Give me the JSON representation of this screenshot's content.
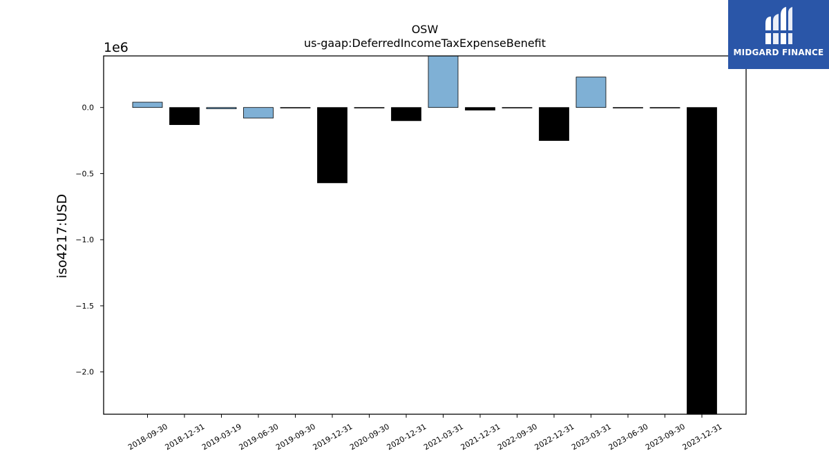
{
  "chart_data": {
    "type": "bar",
    "title": "OSW",
    "subtitle": "us-gaap:DeferredIncomeTaxExpenseBenefit",
    "xlabel": "",
    "ylabel": "iso4217:USD",
    "offset_label": "1e6",
    "ylim": [
      -2.32,
      0.39
    ],
    "yticks": [
      0.0,
      -0.5,
      -1.0,
      -1.5,
      -2.0
    ],
    "ytick_labels": [
      "0.0",
      "−0.5",
      "−1.0",
      "−1.5",
      "−2.0"
    ],
    "grid": false,
    "categories": [
      "2018-09-30",
      "2018-12-31",
      "2019-03-19",
      "2019-06-30",
      "2019-09-30",
      "2019-12-31",
      "2020-09-30",
      "2020-12-31",
      "2021-03-31",
      "2021-12-31",
      "2022-09-30",
      "2022-12-31",
      "2023-03-31",
      "2023-06-30",
      "2023-09-30",
      "2023-12-31"
    ],
    "values": [
      0.04,
      -0.13,
      -0.01,
      -0.08,
      -0.002,
      -0.57,
      -0.002,
      -0.1,
      0.39,
      -0.02,
      -0.002,
      -0.25,
      0.23,
      -0.002,
      -0.002,
      -2.32
    ],
    "colors": [
      "#7fb0d5",
      "#000000",
      "#7fb0d5",
      "#7fb0d5",
      "#000000",
      "#000000",
      "#000000",
      "#000000",
      "#7fb0d5",
      "#000000",
      "#000000",
      "#000000",
      "#7fb0d5",
      "#000000",
      "#000000",
      "#000000"
    ]
  },
  "logo": {
    "text": "MIDGARD FINANCE",
    "icon": "midgard-finance-logo-icon",
    "background": "#2a56a8"
  }
}
